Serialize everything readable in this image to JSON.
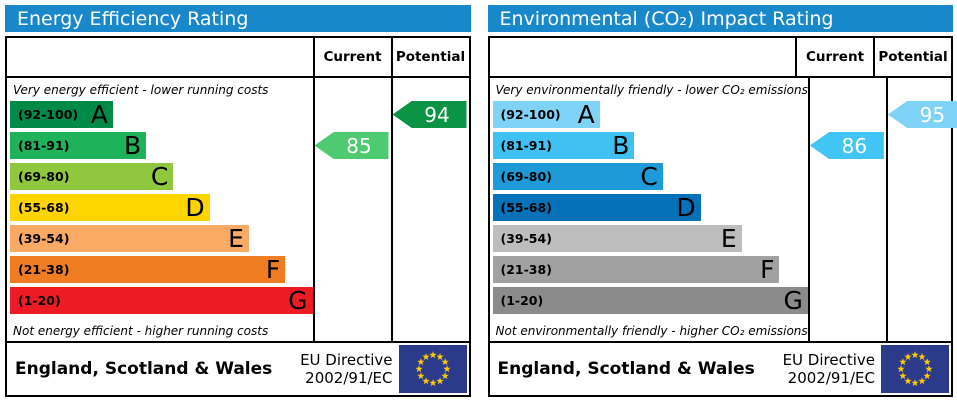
{
  "colors": {
    "header_accent": "#1888ca",
    "eu_flag_blue": "#2c3a8c",
    "eu_flag_star": "#ffcc00",
    "border": "#000000"
  },
  "chart_data": [
    {
      "type": "bar",
      "title": "Energy Efficiency Rating",
      "categories": [
        "A (92-100)",
        "B (81-91)",
        "C (69-80)",
        "D (55-68)",
        "E (39-54)",
        "F (21-38)",
        "G (1-20)"
      ],
      "values": [
        34,
        45,
        54,
        66,
        79,
        91,
        100
      ],
      "markers": {
        "current": 85,
        "potential": 94
      },
      "annotations": [
        "Very energy efficient - lower running costs",
        "Not energy efficient - higher running costs"
      ],
      "legend_position": "top-columns: Current, Potential"
    },
    {
      "type": "bar",
      "title": "Environmental (CO₂) Impact Rating",
      "categories": [
        "A (92-100)",
        "B (81-91)",
        "C (69-80)",
        "D (55-68)",
        "E (39-54)",
        "F (21-38)",
        "G (1-20)"
      ],
      "values": [
        34,
        45,
        54,
        66,
        79,
        91,
        100
      ],
      "markers": {
        "current": 86,
        "potential": 95
      },
      "annotations": [
        "Very environmentally friendly - lower CO₂ emissions",
        "Not environmentally friendly - higher CO₂ emissions"
      ],
      "legend_position": "top-columns: Current, Potential"
    }
  ],
  "panels": [
    {
      "title": "Energy Efficiency Rating",
      "accent_color": "#1888ca",
      "columns": {
        "current": "Current",
        "potential": "Potential"
      },
      "top_caption": "Very energy efficient - lower running costs",
      "bottom_caption": "Not energy efficient - higher running costs",
      "bands": [
        {
          "letter": "A",
          "range": "(92-100)",
          "color": "#008a47",
          "width_pct": 34
        },
        {
          "letter": "B",
          "range": "(81-91)",
          "color": "#1eb35a",
          "width_pct": 45
        },
        {
          "letter": "C",
          "range": "(69-80)",
          "color": "#8fc73e",
          "width_pct": 54
        },
        {
          "letter": "D",
          "range": "(55-68)",
          "color": "#fed500",
          "width_pct": 66
        },
        {
          "letter": "E",
          "range": "(39-54)",
          "color": "#fbaa65",
          "width_pct": 79
        },
        {
          "letter": "F",
          "range": "(21-38)",
          "color": "#f07d22",
          "width_pct": 91
        },
        {
          "letter": "G",
          "range": "(1-20)",
          "color": "#ed1c24",
          "width_pct": 100
        }
      ],
      "current": {
        "value": "85",
        "color": "#4ecb71",
        "row": 1
      },
      "potential": {
        "value": "94",
        "color": "#0b9444",
        "row": 0
      },
      "footer": {
        "region": "England, Scotland & Wales",
        "directive_line1": "EU Directive",
        "directive_line2": "2002/91/EC"
      }
    },
    {
      "title": "Environmental (CO₂) Impact Rating",
      "accent_color": "#1888ca",
      "columns": {
        "current": "Current",
        "potential": "Potential"
      },
      "top_caption": "Very environmentally friendly - lower CO₂ emissions",
      "bottom_caption": "Not environmentally friendly - higher CO₂ emissions",
      "bands": [
        {
          "letter": "A",
          "range": "(92-100)",
          "color": "#7ed3f7",
          "width_pct": 34
        },
        {
          "letter": "B",
          "range": "(81-91)",
          "color": "#3fc2f1",
          "width_pct": 45
        },
        {
          "letter": "C",
          "range": "(69-80)",
          "color": "#1d9ad7",
          "width_pct": 54
        },
        {
          "letter": "D",
          "range": "(55-68)",
          "color": "#0471b9",
          "width_pct": 66
        },
        {
          "letter": "E",
          "range": "(39-54)",
          "color": "#bdbdbd",
          "width_pct": 79
        },
        {
          "letter": "F",
          "range": "(21-38)",
          "color": "#a1a1a1",
          "width_pct": 91
        },
        {
          "letter": "G",
          "range": "(1-20)",
          "color": "#8b8b8b",
          "width_pct": 100
        }
      ],
      "current": {
        "value": "86",
        "color": "#40c5f4",
        "row": 1
      },
      "potential": {
        "value": "95",
        "color": "#7ed3f7",
        "row": 0
      },
      "footer": {
        "region": "England, Scotland & Wales",
        "directive_line1": "EU Directive",
        "directive_line2": "2002/91/EC"
      }
    }
  ]
}
